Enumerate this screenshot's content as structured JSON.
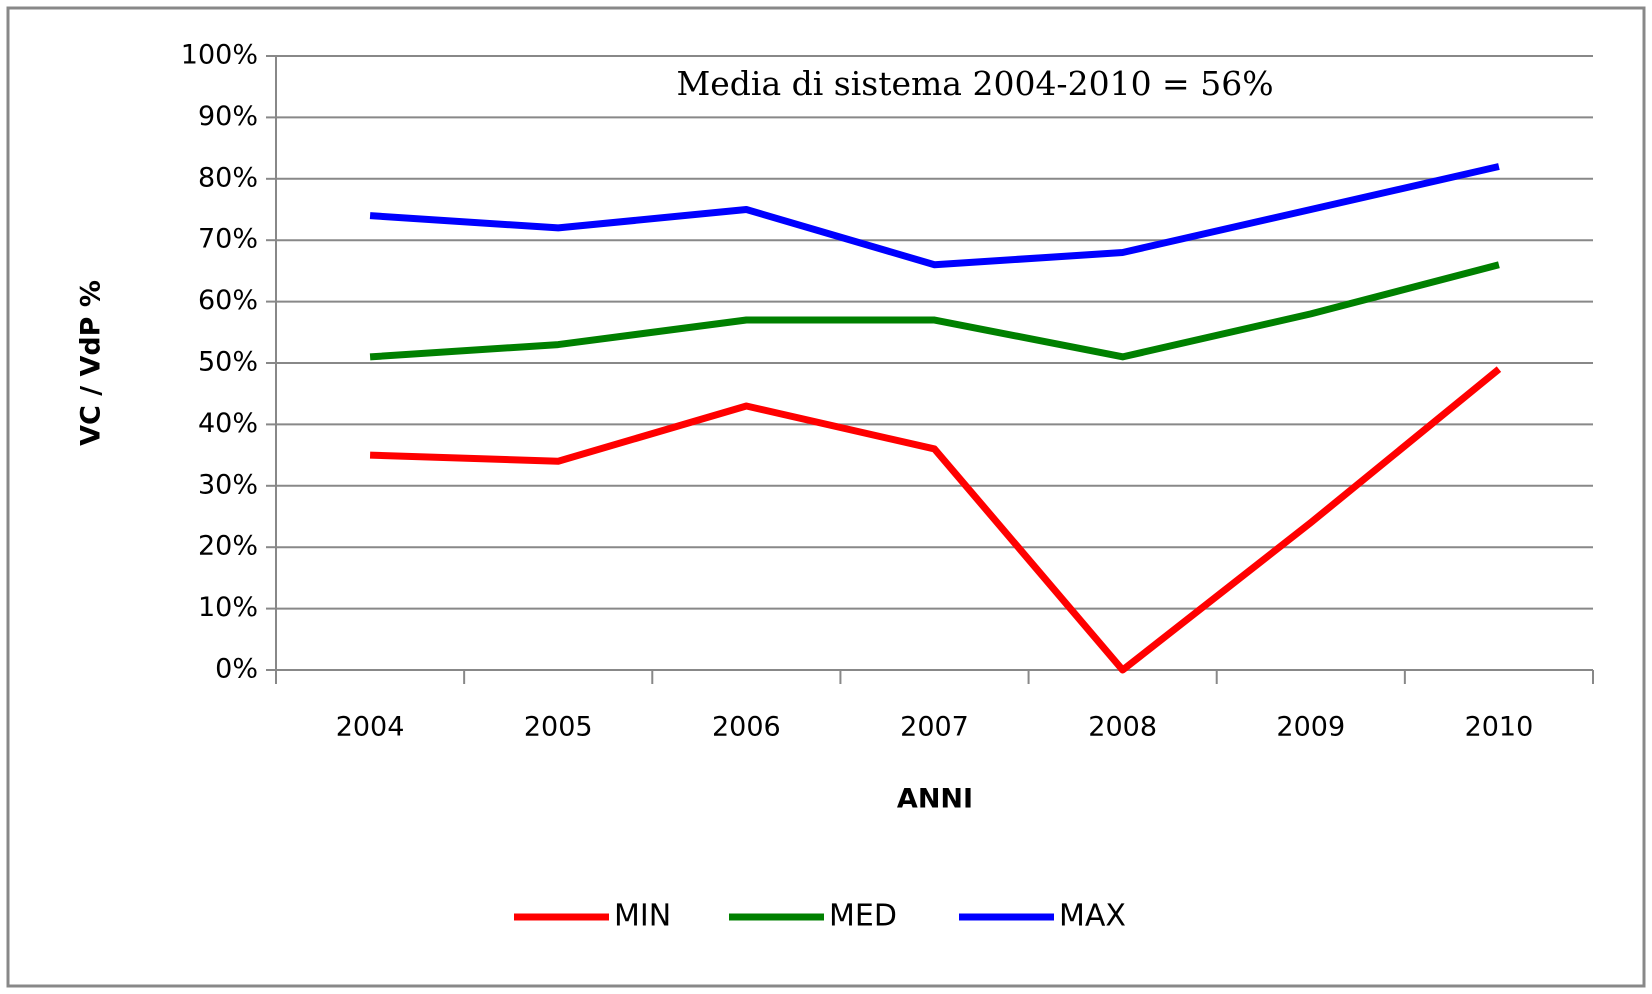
{
  "chart_data": {
    "type": "line",
    "annotation": "Media di sistema 2004-2010 = 56%",
    "x_label": "ANNI",
    "y_label": "VC / VdP %",
    "categories": [
      "2004",
      "2005",
      "2006",
      "2007",
      "2008",
      "2009",
      "2010"
    ],
    "series": [
      {
        "name": "MIN",
        "color": "#ff0000",
        "values": [
          35,
          34,
          43,
          36,
          0,
          24,
          49
        ]
      },
      {
        "name": "MED",
        "color": "#008000",
        "values": [
          51,
          53,
          57,
          57,
          51,
          58,
          66
        ]
      },
      {
        "name": "MAX",
        "color": "#0000ff",
        "values": [
          74,
          72,
          75,
          66,
          68,
          75,
          82
        ]
      }
    ],
    "ylim": [
      0,
      100
    ],
    "yticks": [
      {
        "value": 0,
        "label": "0%"
      },
      {
        "value": 10,
        "label": "10%"
      },
      {
        "value": 20,
        "label": "20%"
      },
      {
        "value": 30,
        "label": "30%"
      },
      {
        "value": 40,
        "label": "40%"
      },
      {
        "value": 50,
        "label": "50%"
      },
      {
        "value": 60,
        "label": "60%"
      },
      {
        "value": 70,
        "label": "70%"
      },
      {
        "value": 80,
        "label": "80%"
      },
      {
        "value": 90,
        "label": "90%"
      },
      {
        "value": 100,
        "label": "100%"
      }
    ],
    "grid": true,
    "legend": "bottom"
  }
}
